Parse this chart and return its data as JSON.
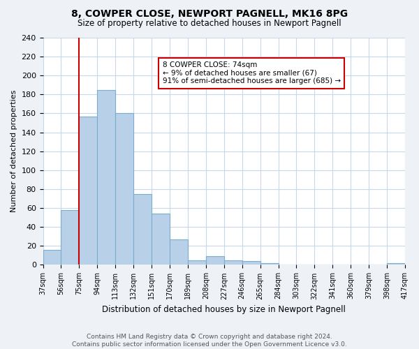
{
  "title": "8, COWPER CLOSE, NEWPORT PAGNELL, MK16 8PG",
  "subtitle": "Size of property relative to detached houses in Newport Pagnell",
  "xlabel": "Distribution of detached houses by size in Newport Pagnell",
  "ylabel": "Number of detached properties",
  "bar_values": [
    16,
    58,
    157,
    185,
    160,
    75,
    54,
    27,
    5,
    9,
    5,
    4,
    2,
    0,
    0,
    0,
    0,
    0,
    0,
    2
  ],
  "bin_labels": [
    "37sqm",
    "56sqm",
    "75sqm",
    "94sqm",
    "113sqm",
    "132sqm",
    "151sqm",
    "170sqm",
    "189sqm",
    "208sqm",
    "227sqm",
    "246sqm",
    "265sqm",
    "284sqm",
    "303sqm",
    "322sqm",
    "341sqm",
    "360sqm",
    "379sqm",
    "398sqm",
    "417sqm"
  ],
  "bar_color": "#b8d0e8",
  "bar_edge_color": "#7aadd0",
  "vline_color": "#cc0000",
  "vline_bin_index": 2,
  "annotation_line1": "8 COWPER CLOSE: 74sqm",
  "annotation_line2": "← 9% of detached houses are smaller (67)",
  "annotation_line3": "91% of semi-detached houses are larger (685) →",
  "annotation_box_facecolor": "#ffffff",
  "annotation_box_edgecolor": "#cc0000",
  "ylim": [
    0,
    240
  ],
  "yticks": [
    0,
    20,
    40,
    60,
    80,
    100,
    120,
    140,
    160,
    180,
    200,
    220,
    240
  ],
  "footer_text": "Contains HM Land Registry data © Crown copyright and database right 2024.\nContains public sector information licensed under the Open Government Licence v3.0.",
  "background_color": "#eef2f7",
  "plot_background_color": "#ffffff",
  "grid_color": "#c8d8e8"
}
